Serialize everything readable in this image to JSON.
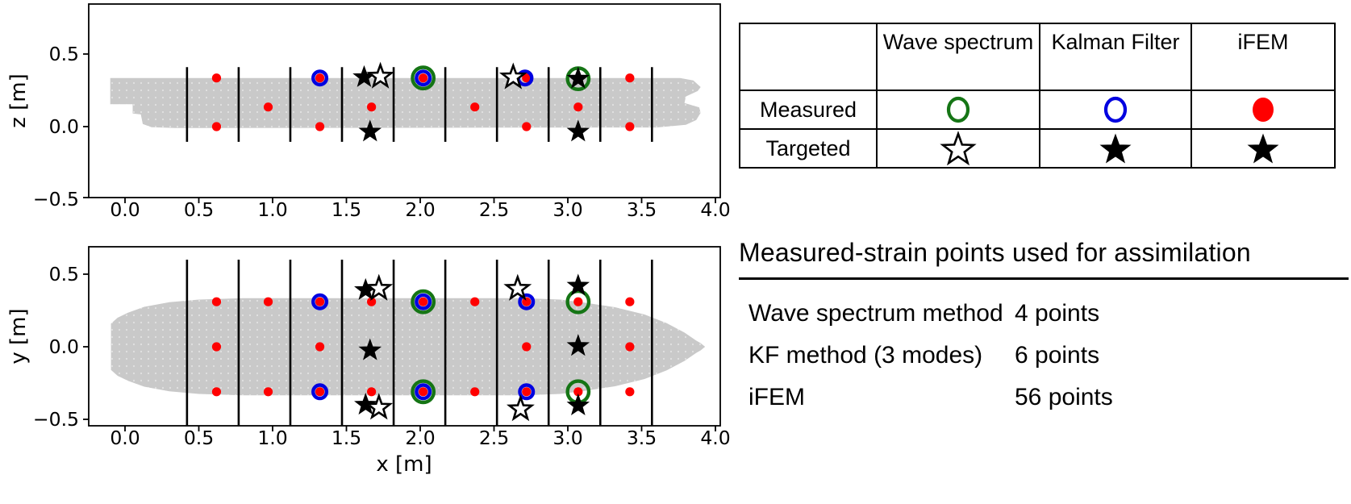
{
  "colors": {
    "red": "#ff0000",
    "blue": "#0000e0",
    "green": "#157515",
    "hull_gray": "#c9c9c9",
    "black": "#000000"
  },
  "chart_data": [
    {
      "type": "scatter",
      "name": "side_view",
      "xlabel": "",
      "ylabel": "z [m]",
      "xticks": [
        0.0,
        0.5,
        1.0,
        1.5,
        2.0,
        2.5,
        3.0,
        3.5,
        4.0
      ],
      "yticks": [
        0.5,
        0.0,
        -0.5
      ],
      "xlim": [
        -0.25,
        4.03
      ],
      "ylim": [
        -0.49,
        0.84
      ],
      "grid": false,
      "section_lines_x": [
        0.42,
        0.77,
        1.12,
        1.47,
        1.82,
        2.17,
        2.52,
        2.87,
        3.22,
        3.57
      ],
      "section_line_extent": [
        -0.105,
        0.41
      ],
      "hull_outline": [
        [
          -0.1,
          0.335
        ],
        [
          3.76,
          0.335
        ],
        [
          3.85,
          0.318
        ],
        [
          3.9,
          0.272
        ],
        [
          3.88,
          0.245
        ],
        [
          3.8,
          0.208
        ],
        [
          3.79,
          0.163
        ],
        [
          3.89,
          0.133
        ],
        [
          3.9,
          0.095
        ],
        [
          3.87,
          0.045
        ],
        [
          3.8,
          0.012
        ],
        [
          3.6,
          -0.006
        ],
        [
          0.34,
          -0.01
        ],
        [
          0.18,
          -0.004
        ],
        [
          0.12,
          0.018
        ],
        [
          0.107,
          0.084
        ],
        [
          0.052,
          0.09
        ],
        [
          0.052,
          0.154
        ],
        [
          -0.1,
          0.154
        ]
      ],
      "series": [
        {
          "name": "iFEM measured",
          "marker": "filled-circle",
          "color": "#ff0000",
          "points": [
            [
              0.62,
              0.335
            ],
            [
              0.62,
              0.0
            ],
            [
              0.97,
              0.135
            ],
            [
              1.32,
              0.335
            ],
            [
              1.32,
              0.0
            ],
            [
              1.67,
              0.135
            ],
            [
              2.02,
              0.335
            ],
            [
              2.37,
              0.135
            ],
            [
              2.72,
              0.335
            ],
            [
              2.72,
              0.0
            ],
            [
              3.07,
              0.135
            ],
            [
              3.07,
              0.33
            ],
            [
              3.42,
              0.335
            ],
            [
              3.42,
              0.0
            ]
          ]
        },
        {
          "name": "Kalman Filter measured",
          "marker": "open-circle",
          "color": "#0000e0",
          "points": [
            [
              1.32,
              0.335
            ],
            [
              2.02,
              0.335
            ],
            [
              2.71,
              0.335
            ]
          ]
        },
        {
          "name": "Wave spectrum measured",
          "marker": "open-circle",
          "color": "#157515",
          "points": [
            [
              2.02,
              0.335
            ],
            [
              3.07,
              0.33
            ]
          ]
        },
        {
          "name": "KF / iFEM targeted",
          "marker": "filled-star",
          "color": "#000000",
          "points": [
            [
              1.62,
              0.34
            ],
            [
              1.66,
              -0.035
            ],
            [
              3.07,
              0.33
            ],
            [
              3.07,
              -0.035
            ]
          ]
        },
        {
          "name": "Wave spectrum targeted",
          "marker": "open-star",
          "color": "#000000",
          "points": [
            [
              1.73,
              0.345
            ],
            [
              2.63,
              0.34
            ]
          ]
        }
      ]
    },
    {
      "type": "scatter",
      "name": "top_view",
      "xlabel": "x [m]",
      "ylabel": "y [m]",
      "xticks": [
        0.0,
        0.5,
        1.0,
        1.5,
        2.0,
        2.5,
        3.0,
        3.5,
        4.0
      ],
      "yticks": [
        0.5,
        0.0,
        -0.5
      ],
      "xlim": [
        -0.25,
        4.03
      ],
      "ylim": [
        -0.545,
        0.69
      ],
      "grid": false,
      "section_lines_x": [
        0.42,
        0.77,
        1.12,
        1.47,
        1.82,
        2.17,
        2.52,
        2.87,
        3.22,
        3.57
      ],
      "section_line_extent": [
        -0.54,
        0.6
      ],
      "hull_half_outline": [
        [
          -0.095,
          0.0
        ],
        [
          -0.095,
          0.16
        ],
        [
          -0.05,
          0.2
        ],
        [
          0.02,
          0.235
        ],
        [
          0.13,
          0.275
        ],
        [
          0.3,
          0.307
        ],
        [
          0.5,
          0.325
        ],
        [
          0.8,
          0.335
        ],
        [
          2.7,
          0.335
        ],
        [
          2.95,
          0.325
        ],
        [
          3.12,
          0.303
        ],
        [
          3.32,
          0.272
        ],
        [
          3.52,
          0.222
        ],
        [
          3.67,
          0.162
        ],
        [
          3.79,
          0.098
        ],
        [
          3.87,
          0.042
        ],
        [
          3.9,
          0.025
        ],
        [
          3.93,
          0.0
        ]
      ],
      "series": [
        {
          "name": "iFEM measured",
          "marker": "filled-circle",
          "color": "#ff0000",
          "points": [
            [
              0.62,
              0.31
            ],
            [
              0.62,
              0.0
            ],
            [
              0.62,
              -0.31
            ],
            [
              0.97,
              0.31
            ],
            [
              0.97,
              -0.31
            ],
            [
              1.32,
              0.31
            ],
            [
              1.32,
              0.0
            ],
            [
              1.32,
              -0.31
            ],
            [
              1.67,
              0.31
            ],
            [
              1.67,
              -0.31
            ],
            [
              2.02,
              0.31
            ],
            [
              2.02,
              -0.31
            ],
            [
              2.37,
              0.31
            ],
            [
              2.37,
              -0.31
            ],
            [
              2.72,
              0.31
            ],
            [
              2.72,
              0.0
            ],
            [
              2.72,
              -0.31
            ],
            [
              3.07,
              0.31
            ],
            [
              3.07,
              -0.31
            ],
            [
              3.42,
              0.31
            ],
            [
              3.42,
              0.0
            ],
            [
              3.42,
              -0.31
            ]
          ]
        },
        {
          "name": "Kalman Filter measured",
          "marker": "open-circle",
          "color": "#0000e0",
          "points": [
            [
              1.32,
              0.31
            ],
            [
              1.32,
              -0.31
            ],
            [
              2.02,
              0.31
            ],
            [
              2.02,
              -0.31
            ],
            [
              2.72,
              0.31
            ],
            [
              2.72,
              -0.31
            ]
          ]
        },
        {
          "name": "Wave spectrum measured",
          "marker": "open-circle",
          "color": "#157515",
          "points": [
            [
              2.02,
              0.31
            ],
            [
              2.02,
              -0.31
            ],
            [
              3.07,
              0.31
            ],
            [
              3.07,
              -0.31
            ]
          ]
        },
        {
          "name": "KF / iFEM targeted",
          "marker": "filled-star",
          "color": "#000000",
          "points": [
            [
              1.63,
              0.39
            ],
            [
              1.63,
              -0.4
            ],
            [
              1.66,
              -0.025
            ],
            [
              3.07,
              0.42
            ],
            [
              3.07,
              -0.405
            ],
            [
              3.07,
              0.005
            ]
          ]
        },
        {
          "name": "Wave spectrum targeted",
          "marker": "open-star",
          "color": "#000000",
          "points": [
            [
              1.72,
              0.4
            ],
            [
              1.72,
              -0.42
            ],
            [
              2.66,
              0.4
            ],
            [
              2.68,
              -0.43
            ]
          ]
        }
      ]
    }
  ],
  "legend_table": {
    "col_headers": [
      "Wave spectrum",
      "Kalman Filter",
      "iFEM"
    ],
    "rows": [
      {
        "label": "Measured",
        "cells": [
          "green-open-circle",
          "blue-open-circle",
          "red-filled-circle"
        ]
      },
      {
        "label": "Targeted",
        "cells": [
          "open-star",
          "filled-star",
          "filled-star"
        ]
      }
    ]
  },
  "caption": {
    "title": "Measured-strain points used for assimilation",
    "rows": [
      {
        "method": "Wave spectrum method",
        "points": "4 points"
      },
      {
        "method": "KF method (3 modes)",
        "points": "6 points"
      },
      {
        "method": "iFEM",
        "points": "56 points"
      }
    ]
  }
}
